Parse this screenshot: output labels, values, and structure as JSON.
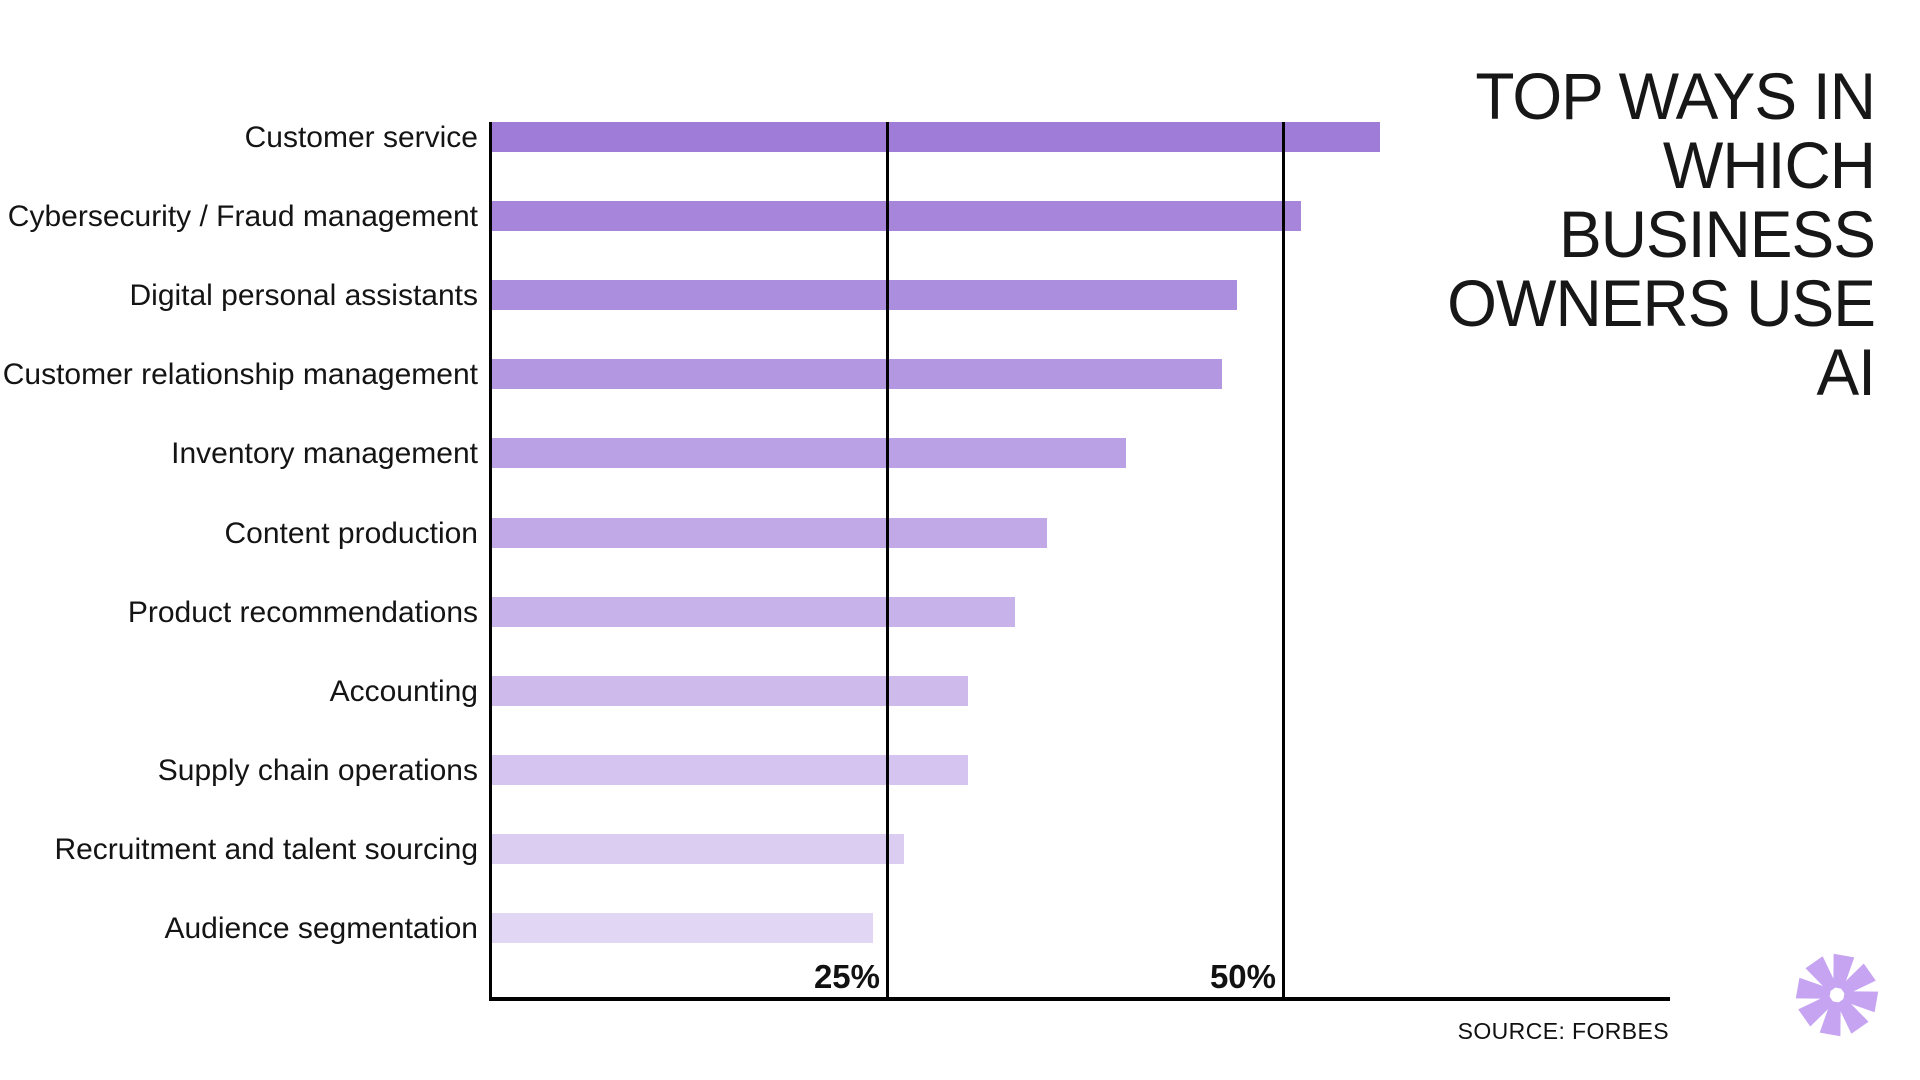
{
  "title": "TOP WAYS IN\nWHICH\nBUSINESS\nOWNERS USE\nAI",
  "source": "SOURCE: FORBES",
  "colors": {
    "background": "#ffffff",
    "text": "#141414",
    "axis": "#000000",
    "logo": "#c6a4f2"
  },
  "chart_data": {
    "type": "bar",
    "orientation": "horizontal",
    "title": "TOP WAYS IN WHICH BUSINESS OWNERS USE AI",
    "source": "SOURCE: FORBES",
    "unit": "%",
    "categories": [
      "Customer service",
      "Cybersecurity / Fraud management",
      "Digital personal assistants",
      "Customer relationship management",
      "Inventory management",
      "Content production",
      "Product recommendations",
      "Accounting",
      "Supply chain operations",
      "Recruitment and talent sourcing",
      "Audience segmentation"
    ],
    "values": [
      56,
      51,
      47,
      46,
      40,
      35,
      33,
      30,
      30,
      26,
      24
    ],
    "bar_colors": [
      "#9f7cd8",
      "#a685db",
      "#ac8ede",
      "#b397e1",
      "#baa0e4",
      "#c1a9e7",
      "#c7b2e9",
      "#cebbec",
      "#d5c4ef",
      "#dbcdf2",
      "#e2d6f5"
    ],
    "xlim": [
      0,
      74
    ],
    "x_ticks": [
      25,
      50
    ],
    "x_tick_labels": [
      "25%",
      "50%"
    ],
    "grid": "vertical gridlines at ticks, drawn over bars",
    "legend": "none"
  }
}
